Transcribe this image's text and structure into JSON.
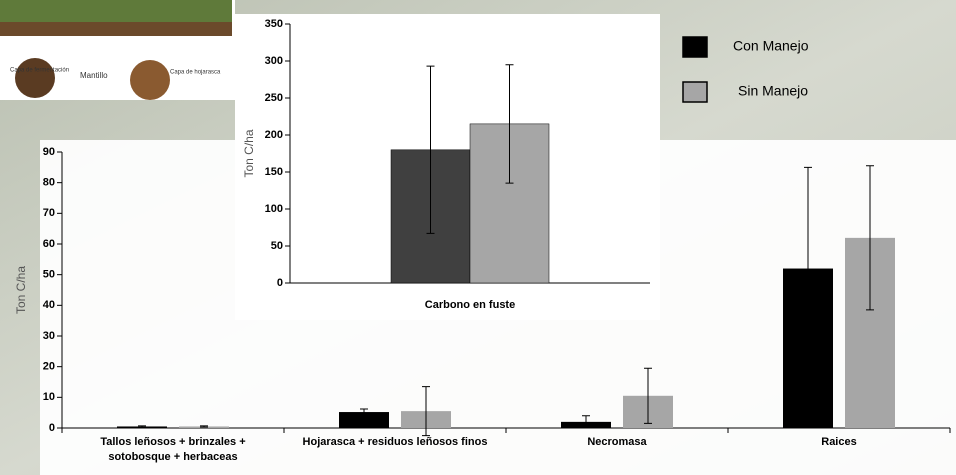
{
  "illustration": {
    "labels": [
      "Capa de fermentación",
      "Mantillo",
      "Capa de hojarasca"
    ]
  },
  "chart_data": [
    {
      "type": "bar",
      "y_label": "Ton C/ha",
      "categories": [
        "Tallos leñosos + brinzales + sotobosque + herbaceas",
        "Hojarasca + residuos leñosos finos",
        "Necromasa",
        "Raices"
      ],
      "series": [
        {
          "name": "Con Manejo",
          "color": "#000000",
          "values": [
            0.5,
            5.2,
            2,
            52
          ],
          "errors": [
            0.2,
            1,
            2,
            33
          ]
        },
        {
          "name": "Sin Manejo",
          "color": "#a6a6a6",
          "values": [
            0.5,
            5.5,
            10.5,
            62
          ],
          "errors": [
            0.2,
            8,
            9,
            23.5
          ]
        }
      ],
      "ylim": [
        0,
        90
      ],
      "yticks": [
        0,
        10,
        20,
        30,
        40,
        50,
        60,
        70,
        80,
        90
      ],
      "legend": "upper right"
    },
    {
      "type": "bar",
      "y_label": "Ton C/ha",
      "categories": [
        "Carbono en fuste"
      ],
      "series": [
        {
          "color": "#404040",
          "values": [
            180
          ],
          "errors": [
            113
          ]
        },
        {
          "color": "#a6a6a6",
          "values": [
            215
          ],
          "errors": [
            80
          ]
        }
      ],
      "ylim": [
        0,
        350
      ],
      "yticks": [
        0,
        50,
        100,
        150,
        200,
        250,
        300,
        350
      ]
    }
  ]
}
